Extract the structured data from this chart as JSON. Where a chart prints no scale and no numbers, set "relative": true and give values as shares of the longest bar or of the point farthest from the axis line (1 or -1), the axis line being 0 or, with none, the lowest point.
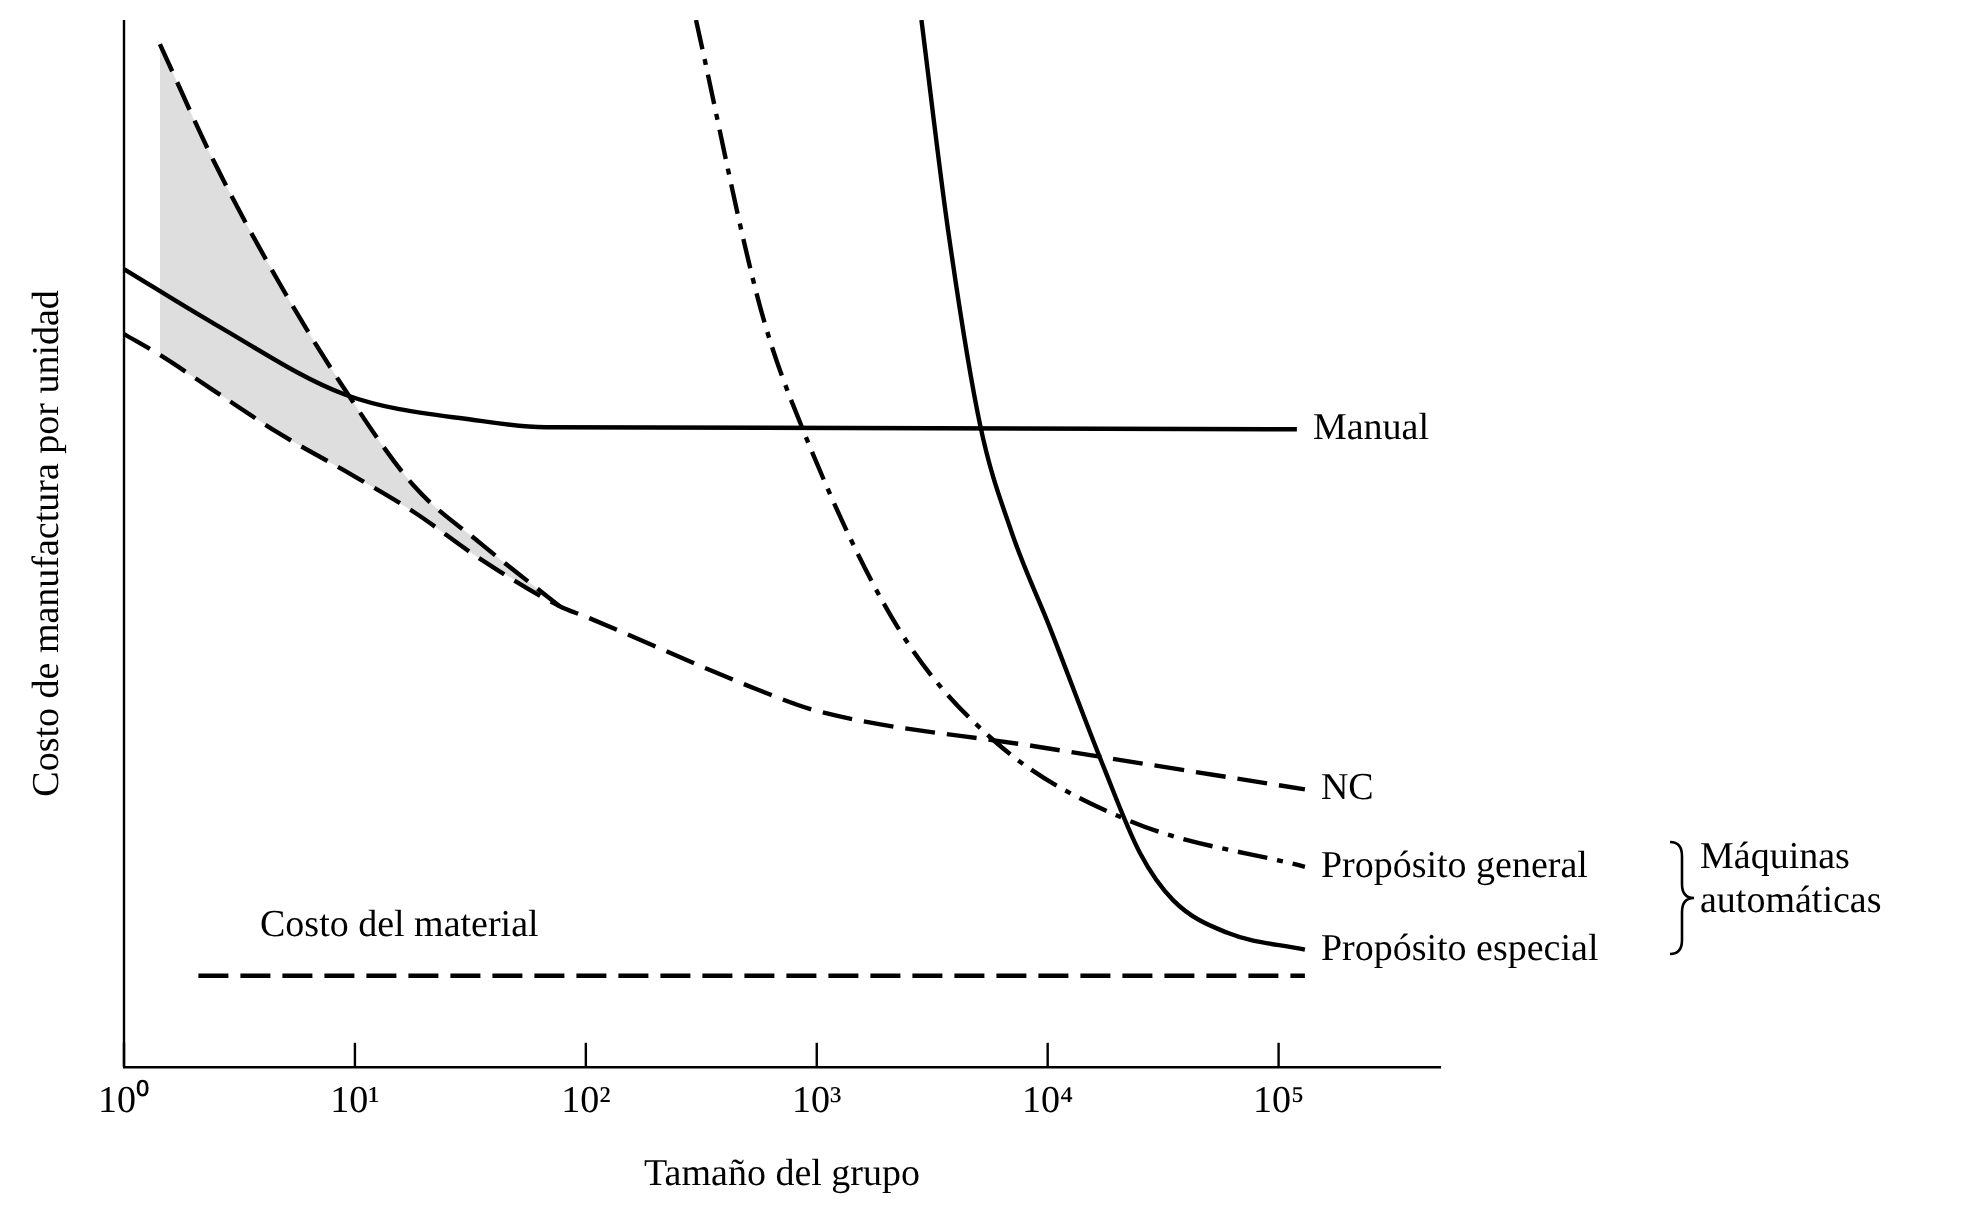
{
  "chart_data": {
    "type": "line",
    "relative": true,
    "log": "x",
    "xlabel": "Tamaño del grupo",
    "ylabel": "Costo de manufactura por unidad",
    "xlim": [
      1,
      500000
    ],
    "xticks": [
      {
        "value": 1,
        "label": "10⁰"
      },
      {
        "value": 10,
        "label": "10¹"
      },
      {
        "value": 100,
        "label": "10²"
      },
      {
        "value": 1000,
        "label": "10³"
      },
      {
        "value": 10000,
        "label": "10⁴"
      },
      {
        "value": 100000,
        "label": "10⁵"
      }
    ],
    "tick_labels": "x",
    "grid": false,
    "legend": false,
    "marker": "none",
    "series": [
      {
        "name": "Manual",
        "color": "#000000",
        "line_style": "solid",
        "x": [
          1,
          2.45,
          9.1,
          35,
          67,
          120000
        ],
        "values": [
          0.762,
          0.71,
          0.642,
          0.617,
          0.611,
          0.609
        ]
      },
      {
        "name": "NC",
        "color": "#000000",
        "line_style": "dashed",
        "x": [
          1,
          1.43,
          2.45,
          4.7,
          9.1,
          18,
          35,
          77,
          100,
          560,
          1000,
          8900,
          130000
        ],
        "values": [
          0.7,
          0.68,
          0.646,
          0.605,
          0.569,
          0.53,
          0.485,
          0.44,
          0.43,
          0.36,
          0.34,
          0.306,
          0.265
        ],
        "lower": [
          null,
          0.68,
          0.646,
          0.605,
          0.569,
          0.53,
          0.485,
          0.44,
          null,
          null,
          null,
          null,
          null
        ],
        "upper": [
          null,
          0.977,
          0.865,
          0.749,
          0.646,
          0.555,
          0.5,
          0.44,
          null,
          null,
          null,
          null,
          null
        ]
      },
      {
        "color": "#000000",
        "line_style": "dashed",
        "x": [
          1.43,
          2.45,
          4.7,
          9.1,
          18,
          35,
          77
        ],
        "values": [
          0.977,
          0.865,
          0.749,
          0.646,
          0.555,
          0.5,
          0.44
        ]
      },
      {
        "name": "Propósito general",
        "color": "#000000",
        "line_style": "dashdot",
        "x": [
          300,
          570,
          870,
          2240,
          5900,
          22000,
          130000
        ],
        "values": [
          1,
          0.725,
          0.609,
          0.42,
          0.311,
          0.236,
          0.191
        ]
      },
      {
        "name": "Propósito especial",
        "color": "#000000",
        "line_style": "solid",
        "x": [
          2840,
          3700,
          5100,
          7000,
          10200,
          17500,
          25000,
          35000,
          60000,
          130000
        ],
        "values": [
          1,
          0.8,
          0.613,
          0.51,
          0.42,
          0.286,
          0.205,
          0.159,
          0.128,
          0.112
        ]
      },
      {
        "color": "#000000",
        "line_style": "dashed",
        "x": [
          2.1,
          130000
        ],
        "values": [
          0.087,
          0.087
        ]
      }
    ],
    "annotations": [
      "Costo del material",
      "Máquinas automáticas"
    ]
  }
}
